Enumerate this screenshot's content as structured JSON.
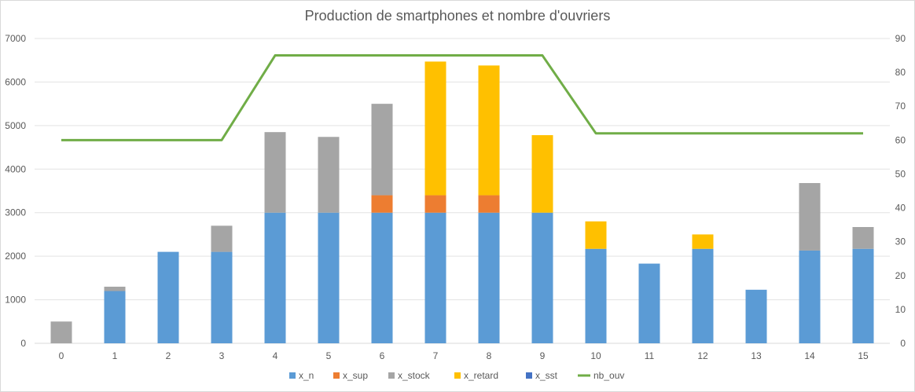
{
  "chart_data": {
    "type": "bar",
    "title": "Production de smartphones et nombre d'ouvriers",
    "categories": [
      "0",
      "1",
      "2",
      "3",
      "4",
      "5",
      "6",
      "7",
      "8",
      "9",
      "10",
      "11",
      "12",
      "13",
      "14",
      "15"
    ],
    "y_left": {
      "min": 0,
      "max": 7000,
      "step": 1000,
      "ticks": [
        "0",
        "1000",
        "2000",
        "3000",
        "4000",
        "5000",
        "6000",
        "7000"
      ]
    },
    "y_right": {
      "min": 0,
      "max": 90,
      "step": 10,
      "ticks": [
        "0",
        "10",
        "20",
        "30",
        "40",
        "50",
        "60",
        "70",
        "80",
        "90"
      ]
    },
    "stacked": true,
    "grid": true,
    "legend_position": "bottom",
    "series": [
      {
        "name": "x_n",
        "color": "#5b9bd5",
        "axis": "left",
        "values": [
          0,
          1200,
          2100,
          2100,
          3000,
          3000,
          3000,
          3000,
          3000,
          3000,
          2170,
          1830,
          2170,
          1230,
          2130,
          2170
        ]
      },
      {
        "name": "x_sup",
        "color": "#ed7d31",
        "axis": "left",
        "values": [
          0,
          0,
          0,
          0,
          0,
          0,
          400,
          400,
          400,
          0,
          0,
          0,
          0,
          0,
          0,
          0
        ]
      },
      {
        "name": "x_stock",
        "color": "#a5a5a5",
        "axis": "left",
        "values": [
          500,
          100,
          0,
          600,
          1850,
          1740,
          2100,
          0,
          0,
          0,
          0,
          0,
          0,
          0,
          1550,
          500
        ]
      },
      {
        "name": "x_retard",
        "color": "#ffc000",
        "axis": "left",
        "values": [
          0,
          0,
          0,
          0,
          0,
          0,
          0,
          3070,
          2980,
          1780,
          630,
          0,
          330,
          0,
          0,
          0
        ]
      },
      {
        "name": "x_sst",
        "color": "#4472c4",
        "axis": "left",
        "values": [
          0,
          0,
          0,
          0,
          0,
          0,
          0,
          0,
          0,
          0,
          0,
          0,
          0,
          0,
          0,
          0
        ]
      },
      {
        "name": "nb_ouv",
        "color": "#70ad47",
        "axis": "right",
        "type": "line",
        "values": [
          60,
          60,
          60,
          60,
          85,
          85,
          85,
          85,
          85,
          85,
          62,
          62,
          62,
          62,
          62,
          62
        ]
      }
    ]
  }
}
